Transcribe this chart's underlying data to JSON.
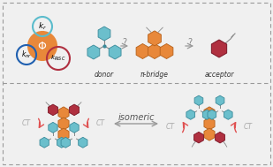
{
  "bg_color": "#f0f0f0",
  "border_color": "#999999",
  "teal_fill": "#6bbfcc",
  "teal_edge": "#3a8a9a",
  "orange_fill": "#e8883a",
  "orange_edge": "#b5601a",
  "red_fill": "#b03040",
  "red_edge": "#7a1525",
  "gray_line": "#888888",
  "circle_phi_fill": "#e8883a",
  "circle_phi_edge": "#e8883a",
  "circle_kr_edge": "#5bbccc",
  "circle_knr_edge": "#2060b0",
  "circle_krisc_edge": "#b03040",
  "ct_color": "#aaaaaa",
  "ct_arrow_color": "#e05050",
  "arrow_color": "#999999",
  "isomeric_color": "#555555",
  "label_color": "#333333",
  "donor_label": "donor",
  "pibridge_label": "π-bridge",
  "acceptor_label": "acceptor",
  "isomeric_label": "isomeric",
  "ct_label": "CT"
}
